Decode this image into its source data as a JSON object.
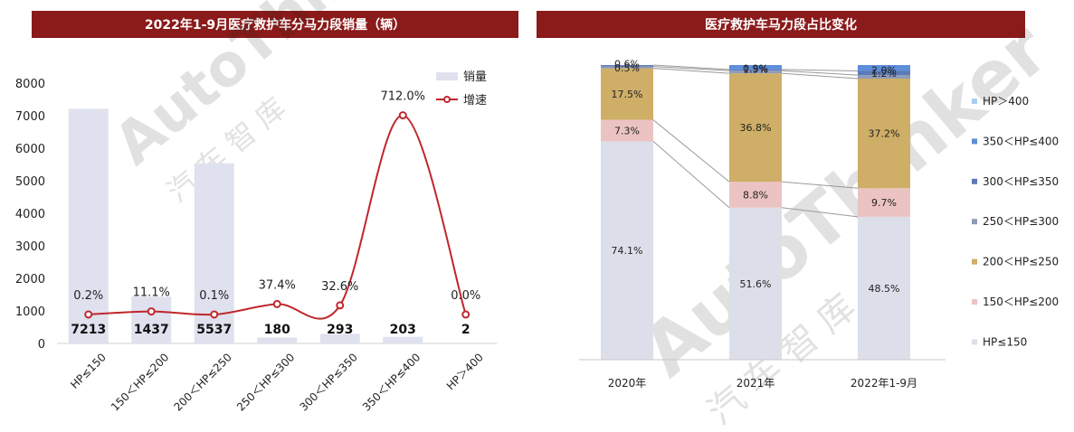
{
  "colors": {
    "title_bg": "#8b1a1a",
    "bar": "#dfe1ee",
    "line": "#c0262c",
    "hp150": "#dcdfea",
    "hp200": "#ecc3c3",
    "hp250": "#cfae67",
    "hp300": "#8f9cb8",
    "hp350": "#5d7ab8",
    "hp400": "#5d8edb",
    "hp400plus": "#a9cdf0"
  },
  "watermark": {
    "brand": "AutoThinker",
    "cn": "汽 车 智 库"
  },
  "chart_data": [
    {
      "type": "bar",
      "title": "2022年1-9月医疗救护车分马力段销量（辆）",
      "categories": [
        "HP≤150",
        "150＜HP≤200",
        "200＜HP≤250",
        "250＜HP≤300",
        "300＜HP≤350",
        "350＜HP≤400",
        "HP＞400"
      ],
      "series": [
        {
          "name": "销量",
          "kind": "bar",
          "values": [
            7213,
            1437,
            5537,
            180,
            293,
            203,
            2
          ],
          "labels": [
            "7213",
            "1437",
            "5537",
            "180",
            "293",
            "203",
            "2"
          ]
        },
        {
          "name": "增速",
          "kind": "line",
          "values": [
            0.2,
            11.1,
            0.1,
            37.4,
            32.6,
            712.0,
            0.0
          ],
          "labels": [
            "0.2%",
            "11.1%",
            "0.1%",
            "37.4%",
            "32.6%",
            "712.0%",
            "0.0%"
          ]
        }
      ],
      "yticks": [
        "0",
        "1000",
        "2000",
        "3000",
        "4000",
        "5000",
        "6000",
        "7000",
        "8000"
      ],
      "ylim": [
        0,
        8000
      ],
      "legend": "top-right"
    },
    {
      "type": "bar",
      "stacked": true,
      "title": "医疗救护车马力段占比变化",
      "categories": [
        "2020年",
        "2021年",
        "2022年1-9月"
      ],
      "series": [
        {
          "name": "HP≤150",
          "values": [
            74.1,
            51.6,
            48.5
          ],
          "labels": [
            "74.1%",
            "51.6%",
            "48.5%"
          ]
        },
        {
          "name": "150＜HP≤200",
          "values": [
            7.3,
            8.8,
            9.7
          ],
          "labels": [
            "7.3%",
            "8.8%",
            "9.7%"
          ]
        },
        {
          "name": "200＜HP≤250",
          "values": [
            17.5,
            36.8,
            37.2
          ],
          "labels": [
            "17.5%",
            "36.8%",
            "37.2%"
          ]
        },
        {
          "name": "250＜HP≤300",
          "values": [
            0.6,
            0.9,
            1.2
          ],
          "labels": [
            "0.6%",
            "0.9%",
            "1.2%"
          ]
        },
        {
          "name": "300＜HP≤350",
          "values": [
            0.5,
            0.4,
            1.4
          ],
          "labels": [
            "0.5%",
            "",
            ""
          ]
        },
        {
          "name": "350＜HP≤400",
          "values": [
            0.0,
            1.5,
            2.0
          ],
          "labels": [
            "",
            "1.5%",
            "2.0%"
          ]
        },
        {
          "name": "HP＞400",
          "values": [
            0.0,
            0.0,
            0.0
          ],
          "labels": [
            "",
            "",
            ""
          ]
        }
      ],
      "ylim": [
        0,
        100
      ],
      "legend": "right"
    }
  ]
}
